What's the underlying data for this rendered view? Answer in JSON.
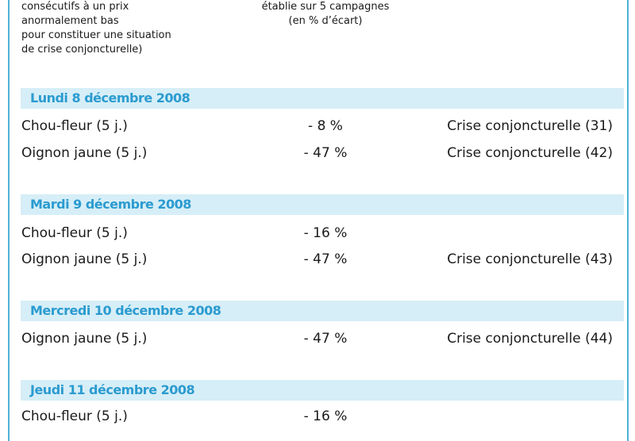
{
  "header": {
    "left_lines": [
      "consécutifs à un prix",
      "anormalement bas",
      "pour constituer une situation",
      "de crise conjoncturelle)"
    ],
    "mid_lines": [
      "établie sur 5 campagnes",
      "(en % d’écart)"
    ]
  },
  "sections": [
    {
      "date": "Lundi 8 décembre 2008",
      "rows": [
        {
          "product": "Chou-fleur (5 j.)",
          "pct": "- 8 %",
          "status": "Crise conjoncturelle (31)"
        },
        {
          "product": "Oignon jaune (5 j.)",
          "pct": "- 47 %",
          "status": "Crise conjoncturelle (42)"
        }
      ]
    },
    {
      "date": "Mardi 9 décembre 2008",
      "rows": [
        {
          "product": "Chou-fleur (5 j.)",
          "pct": "- 16 %",
          "status": ""
        },
        {
          "product": "Oignon jaune (5 j.)",
          "pct": "- 47 %",
          "status": "Crise conjoncturelle (43)"
        }
      ]
    },
    {
      "date": "Mercredi 10 décembre 2008",
      "rows": [
        {
          "product": "Oignon jaune (5 j.)",
          "pct": "- 47 %",
          "status": "Crise conjoncturelle (44)"
        }
      ]
    },
    {
      "date": "Jeudi 11 décembre 2008",
      "rows": [
        {
          "product": "Chou-fleur (5 j.)",
          "pct": "- 16 %",
          "status": ""
        }
      ]
    }
  ],
  "colors": {
    "band_bg": "#d6eef7",
    "band_text": "#2b9bd0",
    "frame": "#4fb3d8"
  }
}
